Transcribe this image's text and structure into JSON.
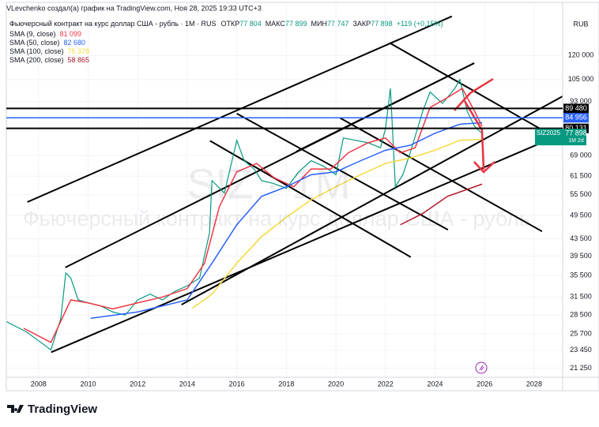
{
  "chart_data": {
    "type": "line",
    "author_line": "VLevchenko создал(а) график на TradingView.com, Ноя 28, 2025 19:33 UTC+3",
    "title": "Фьючерсный контракт на курс доллар США - рубль · 1M · RUS",
    "ohlc": [
      {
        "label": "ОТКР",
        "value": "77 804"
      },
      {
        "label": "МАКС",
        "value": "77 899"
      },
      {
        "label": "МИН",
        "value": "77 747"
      },
      {
        "label": "ЗАКР",
        "value": "77 898"
      }
    ],
    "change": "+119 (+0,15%)",
    "watermark_symbol": "SIZ · 1M",
    "watermark_title": "Фьючерсный контракт на курс доллар США - рубль",
    "currency": "RUB",
    "brand": "TradingView",
    "log_scale": true,
    "xlim": [
      2006.7,
      2029.15
    ],
    "xticks": [
      2008,
      2010,
      2012,
      2014,
      2016,
      2018,
      2020,
      2022,
      2024,
      2026,
      2028
    ],
    "ylim": [
      20200,
      161000
    ],
    "yticks": [
      {
        "value": 120000,
        "label": "120 000"
      },
      {
        "value": 105000,
        "label": "105 000"
      },
      {
        "value": 93000,
        "label": "93 000"
      },
      {
        "value": 69000,
        "label": "69 000"
      },
      {
        "value": 61500,
        "label": "61 500"
      },
      {
        "value": 55500,
        "label": "55 500"
      },
      {
        "value": 49500,
        "label": "49 500"
      },
      {
        "value": 43500,
        "label": "43 500"
      },
      {
        "value": 39500,
        "label": "39 500"
      },
      {
        "value": 35500,
        "label": "35 500"
      },
      {
        "value": 31500,
        "label": "31 500"
      },
      {
        "value": 28500,
        "label": "28 500"
      },
      {
        "value": 25700,
        "label": "25 700"
      },
      {
        "value": 23450,
        "label": "23 450"
      },
      {
        "value": 21250,
        "label": "21 250"
      }
    ],
    "series": [
      {
        "name": "SIZ2025",
        "color": "#089981",
        "last_label": "77 898",
        "countdown": "1M 2d",
        "x": [
          2006.7,
          2007.5,
          2008.3,
          2008.5,
          2008.9,
          2009.1,
          2009.3,
          2009.6,
          2010,
          2010.5,
          2011,
          2011.5,
          2012,
          2012.5,
          2013,
          2013.5,
          2014,
          2014.5,
          2014.9,
          2015,
          2015.5,
          2016,
          2016.3,
          2016.7,
          2017,
          2017.5,
          2018,
          2018.5,
          2019,
          2019.5,
          2020,
          2020.3,
          2020.8,
          2021.3,
          2021.8,
          2022,
          2022.2,
          2022.4,
          2022.7,
          2023,
          2023.5,
          2023.8,
          2024.3,
          2024.8,
          2025,
          2025.3,
          2025.6,
          2025.9
        ],
        "values": [
          27500,
          26000,
          24000,
          23500,
          28000,
          36000,
          35000,
          31000,
          30500,
          30000,
          29000,
          28500,
          31000,
          32000,
          31000,
          32500,
          33500,
          35000,
          45000,
          60000,
          56000,
          75000,
          67000,
          64000,
          60000,
          59000,
          57500,
          63000,
          67000,
          65000,
          62000,
          76000,
          75000,
          74000,
          72000,
          80000,
          100000,
          58000,
          62000,
          70000,
          88000,
          98000,
          92000,
          100000,
          105000,
          88000,
          81000,
          77898
        ]
      },
      {
        "name": "SMA (9, close)",
        "color": "#f23645",
        "last_label": "81 099",
        "x": [
          2007.4,
          2008.5,
          2009.3,
          2010,
          2011,
          2012,
          2013,
          2014,
          2014.7,
          2015.3,
          2016,
          2016.8,
          2017.5,
          2018.3,
          2019,
          2019.8,
          2020.5,
          2021.3,
          2022,
          2022.6,
          2023.2,
          2023.8,
          2024.5,
          2025.1,
          2025.6,
          2025.9
        ],
        "values": [
          26500,
          24500,
          31000,
          30500,
          29500,
          30500,
          31500,
          33000,
          38000,
          52000,
          63000,
          66000,
          61000,
          58000,
          64000,
          64000,
          70000,
          74000,
          76000,
          70000,
          72000,
          90000,
          95000,
          100000,
          88000,
          81099
        ]
      },
      {
        "name": "SMA (50, close)",
        "color": "#2962ff",
        "last_label": "82 680",
        "x": [
          2010.1,
          2012,
          2014,
          2015,
          2016,
          2017,
          2018,
          2019,
          2020,
          2021,
          2022,
          2023,
          2024,
          2025,
          2025.9
        ],
        "values": [
          28000,
          29000,
          31000,
          38000,
          47000,
          55000,
          58000,
          62000,
          63000,
          67000,
          71000,
          73000,
          78000,
          82000,
          82680
        ]
      },
      {
        "name": "SMA (100, close)",
        "color": "#f5d93b",
        "last_label": "75 378",
        "x": [
          2014.2,
          2015,
          2016,
          2017,
          2018,
          2019,
          2020,
          2021,
          2022,
          2023,
          2024,
          2025,
          2025.9
        ],
        "values": [
          29600,
          32000,
          38000,
          44000,
          49000,
          54000,
          58000,
          62000,
          66000,
          68000,
          71000,
          75000,
          75378
        ]
      },
      {
        "name": "SMA (200, close)",
        "color": "#b2182b",
        "last_label": "58 865",
        "x": [
          2022.6,
          2023.5,
          2024.5,
          2025.9
        ],
        "values": [
          47000,
          50000,
          55000,
          58865
        ]
      }
    ],
    "price_lines": [
      {
        "value": 89480,
        "label": "89 480",
        "color": "#000000"
      },
      {
        "value": 84956,
        "label": "84 956",
        "color": "#2962ff"
      },
      {
        "value": 80131,
        "label": "80 131",
        "color": "#000000"
      }
    ],
    "trend_lines": [
      {
        "x": [
          2007.55,
          2024.68
        ],
        "y": [
          53300,
          149000
        ]
      },
      {
        "x": [
          2009.08,
          2025.58
        ],
        "y": [
          37100,
          115000
        ]
      },
      {
        "x": [
          2008.51,
          2029.15
        ],
        "y": [
          23200,
          77800
        ]
      },
      {
        "x": [
          2013.77,
          2029.15
        ],
        "y": [
          30200,
          95700
        ]
      },
      {
        "x": [
          2014.92,
          2023.02
        ],
        "y": [
          74800,
          39300
        ]
      },
      {
        "x": [
          2016.0,
          2024.52
        ],
        "y": [
          87000,
          45700
        ]
      },
      {
        "x": [
          2020.15,
          2028.32
        ],
        "y": [
          85000,
          45300
        ]
      },
      {
        "x": [
          2022.16,
          2029.15
        ],
        "y": [
          128700,
          74500
        ]
      },
      {
        "x": [
          2018.4,
          2025.58
        ],
        "y": [
          70500,
          115000
        ]
      }
    ]
  }
}
